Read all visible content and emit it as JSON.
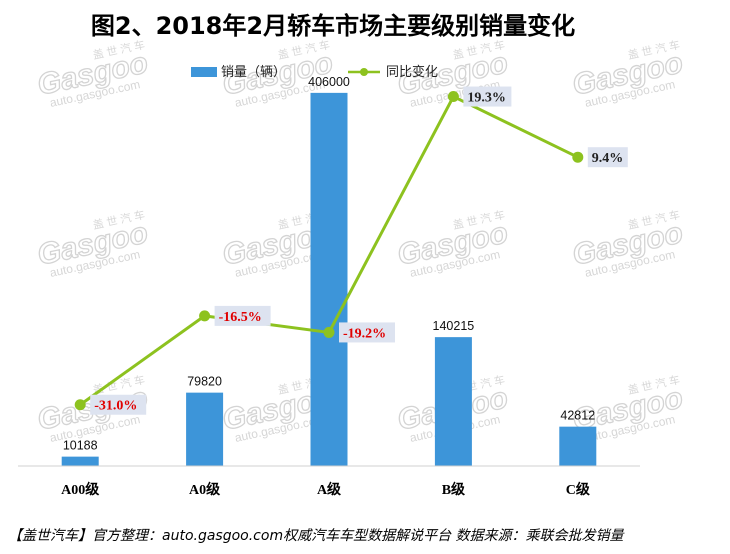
{
  "title": "图2、2018年2月轿车市场主要级别销量变化",
  "footer": "【盖世汽车】官方整理：auto.gasgoo.com权威汽车车型数据解说平台 数据来源：乘联会批发销量",
  "watermark": {
    "brand": "Gasgoo",
    "cn": "盖世汽车",
    "url": "auto.gasgoo.com"
  },
  "colors": {
    "bar": "#3d95d9",
    "line": "#8dc21f",
    "negative_label": "#e00000",
    "positive_label": "#222222",
    "label_box": "#dde3f0"
  },
  "chart_data": {
    "type": "bar",
    "categories": [
      "A00级",
      "A0级",
      "A级",
      "B级",
      "C级"
    ],
    "series": [
      {
        "name": "销量（辆）",
        "type": "bar",
        "axis": "left",
        "values": [
          10188,
          79820,
          406000,
          140215,
          42812
        ],
        "labels": [
          "10188",
          "79820",
          "406000",
          "140215",
          "42812"
        ]
      },
      {
        "name": "同比变化",
        "type": "line",
        "axis": "right",
        "values": [
          -31.0,
          -16.5,
          -19.2,
          19.3,
          9.4
        ],
        "labels": [
          "-31.0%",
          "-16.5%",
          "-19.2%",
          "19.3%",
          "9.4%"
        ]
      }
    ],
    "ylim": [
      0,
      420000
    ],
    "y2lim": [
      -41,
      22
    ],
    "legend": "top-center",
    "grid": false
  }
}
